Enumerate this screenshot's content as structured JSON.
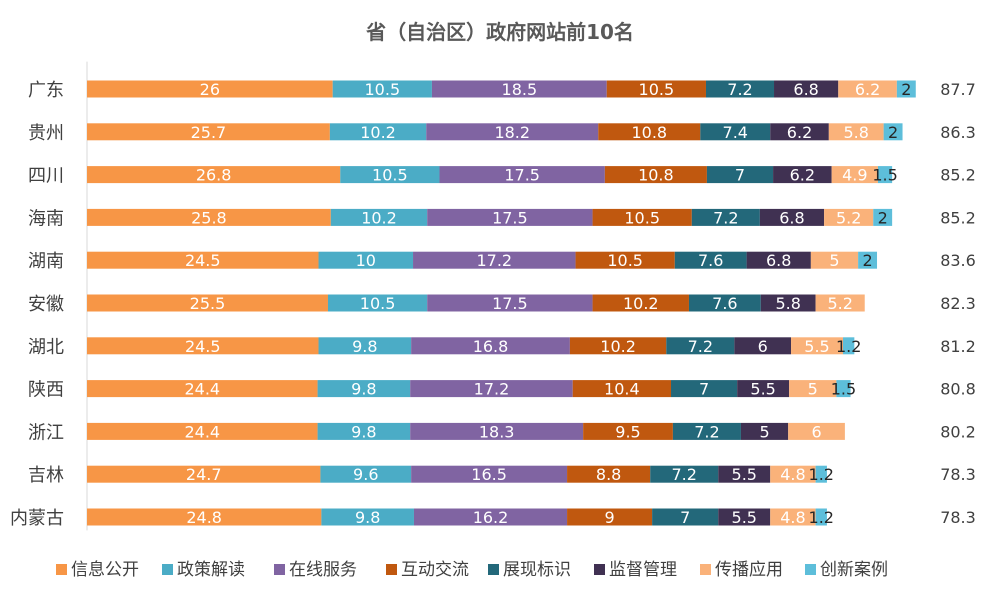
{
  "chart_data": {
    "type": "bar",
    "orientation": "horizontal",
    "stacked": true,
    "title": "省（自治区）政府网站前10名",
    "xlabel": "",
    "ylabel": "",
    "xlim": [
      0,
      90
    ],
    "grid": false,
    "legend_position": "bottom",
    "categories": [
      "广东",
      "贵州",
      "四川",
      "海南",
      "湖南",
      "安徽",
      "湖北",
      "陕西",
      "浙江",
      "吉林",
      "内蒙古"
    ],
    "totals": [
      87.7,
      86.3,
      85.2,
      85.2,
      83.6,
      82.3,
      81.2,
      80.8,
      80.2,
      78.3,
      78.3
    ],
    "series": [
      {
        "name": "信息公开",
        "color": "#F79646",
        "values": [
          26,
          25.7,
          26.8,
          25.8,
          24.5,
          25.5,
          24.5,
          24.4,
          24.4,
          24.7,
          24.8
        ]
      },
      {
        "name": "政策解读",
        "color": "#4BACC6",
        "values": [
          10.5,
          10.2,
          10.5,
          10.2,
          10,
          10.5,
          9.8,
          9.8,
          9.8,
          9.6,
          9.8
        ]
      },
      {
        "name": "在线服务",
        "color": "#8064A2",
        "values": [
          18.5,
          18.2,
          17.5,
          17.5,
          17.2,
          17.5,
          16.8,
          17.2,
          18.3,
          16.5,
          16.2
        ]
      },
      {
        "name": "互动交流",
        "color": "#C0580F",
        "values": [
          10.5,
          10.8,
          10.8,
          10.5,
          10.5,
          10.2,
          10.2,
          10.4,
          9.5,
          8.8,
          9
        ]
      },
      {
        "name": "展现标识",
        "color": "#23687A",
        "values": [
          7.2,
          7.4,
          7,
          7.2,
          7.6,
          7.6,
          7.2,
          7,
          7.2,
          7.2,
          7
        ]
      },
      {
        "name": "监督管理",
        "color": "#403152",
        "values": [
          6.8,
          6.2,
          6.2,
          6.8,
          6.8,
          5.8,
          6,
          5.5,
          5,
          5.5,
          5.5
        ]
      },
      {
        "name": "传播应用",
        "color": "#FAB27A",
        "values": [
          6.2,
          5.8,
          4.9,
          5.2,
          5,
          5.2,
          5.5,
          5,
          6,
          4.8,
          4.8
        ]
      },
      {
        "name": "创新案例",
        "color": "#5DBEDA",
        "values": [
          2,
          2,
          1.5,
          2,
          2,
          null,
          1.2,
          1.5,
          null,
          1.2,
          1.2
        ]
      }
    ]
  }
}
